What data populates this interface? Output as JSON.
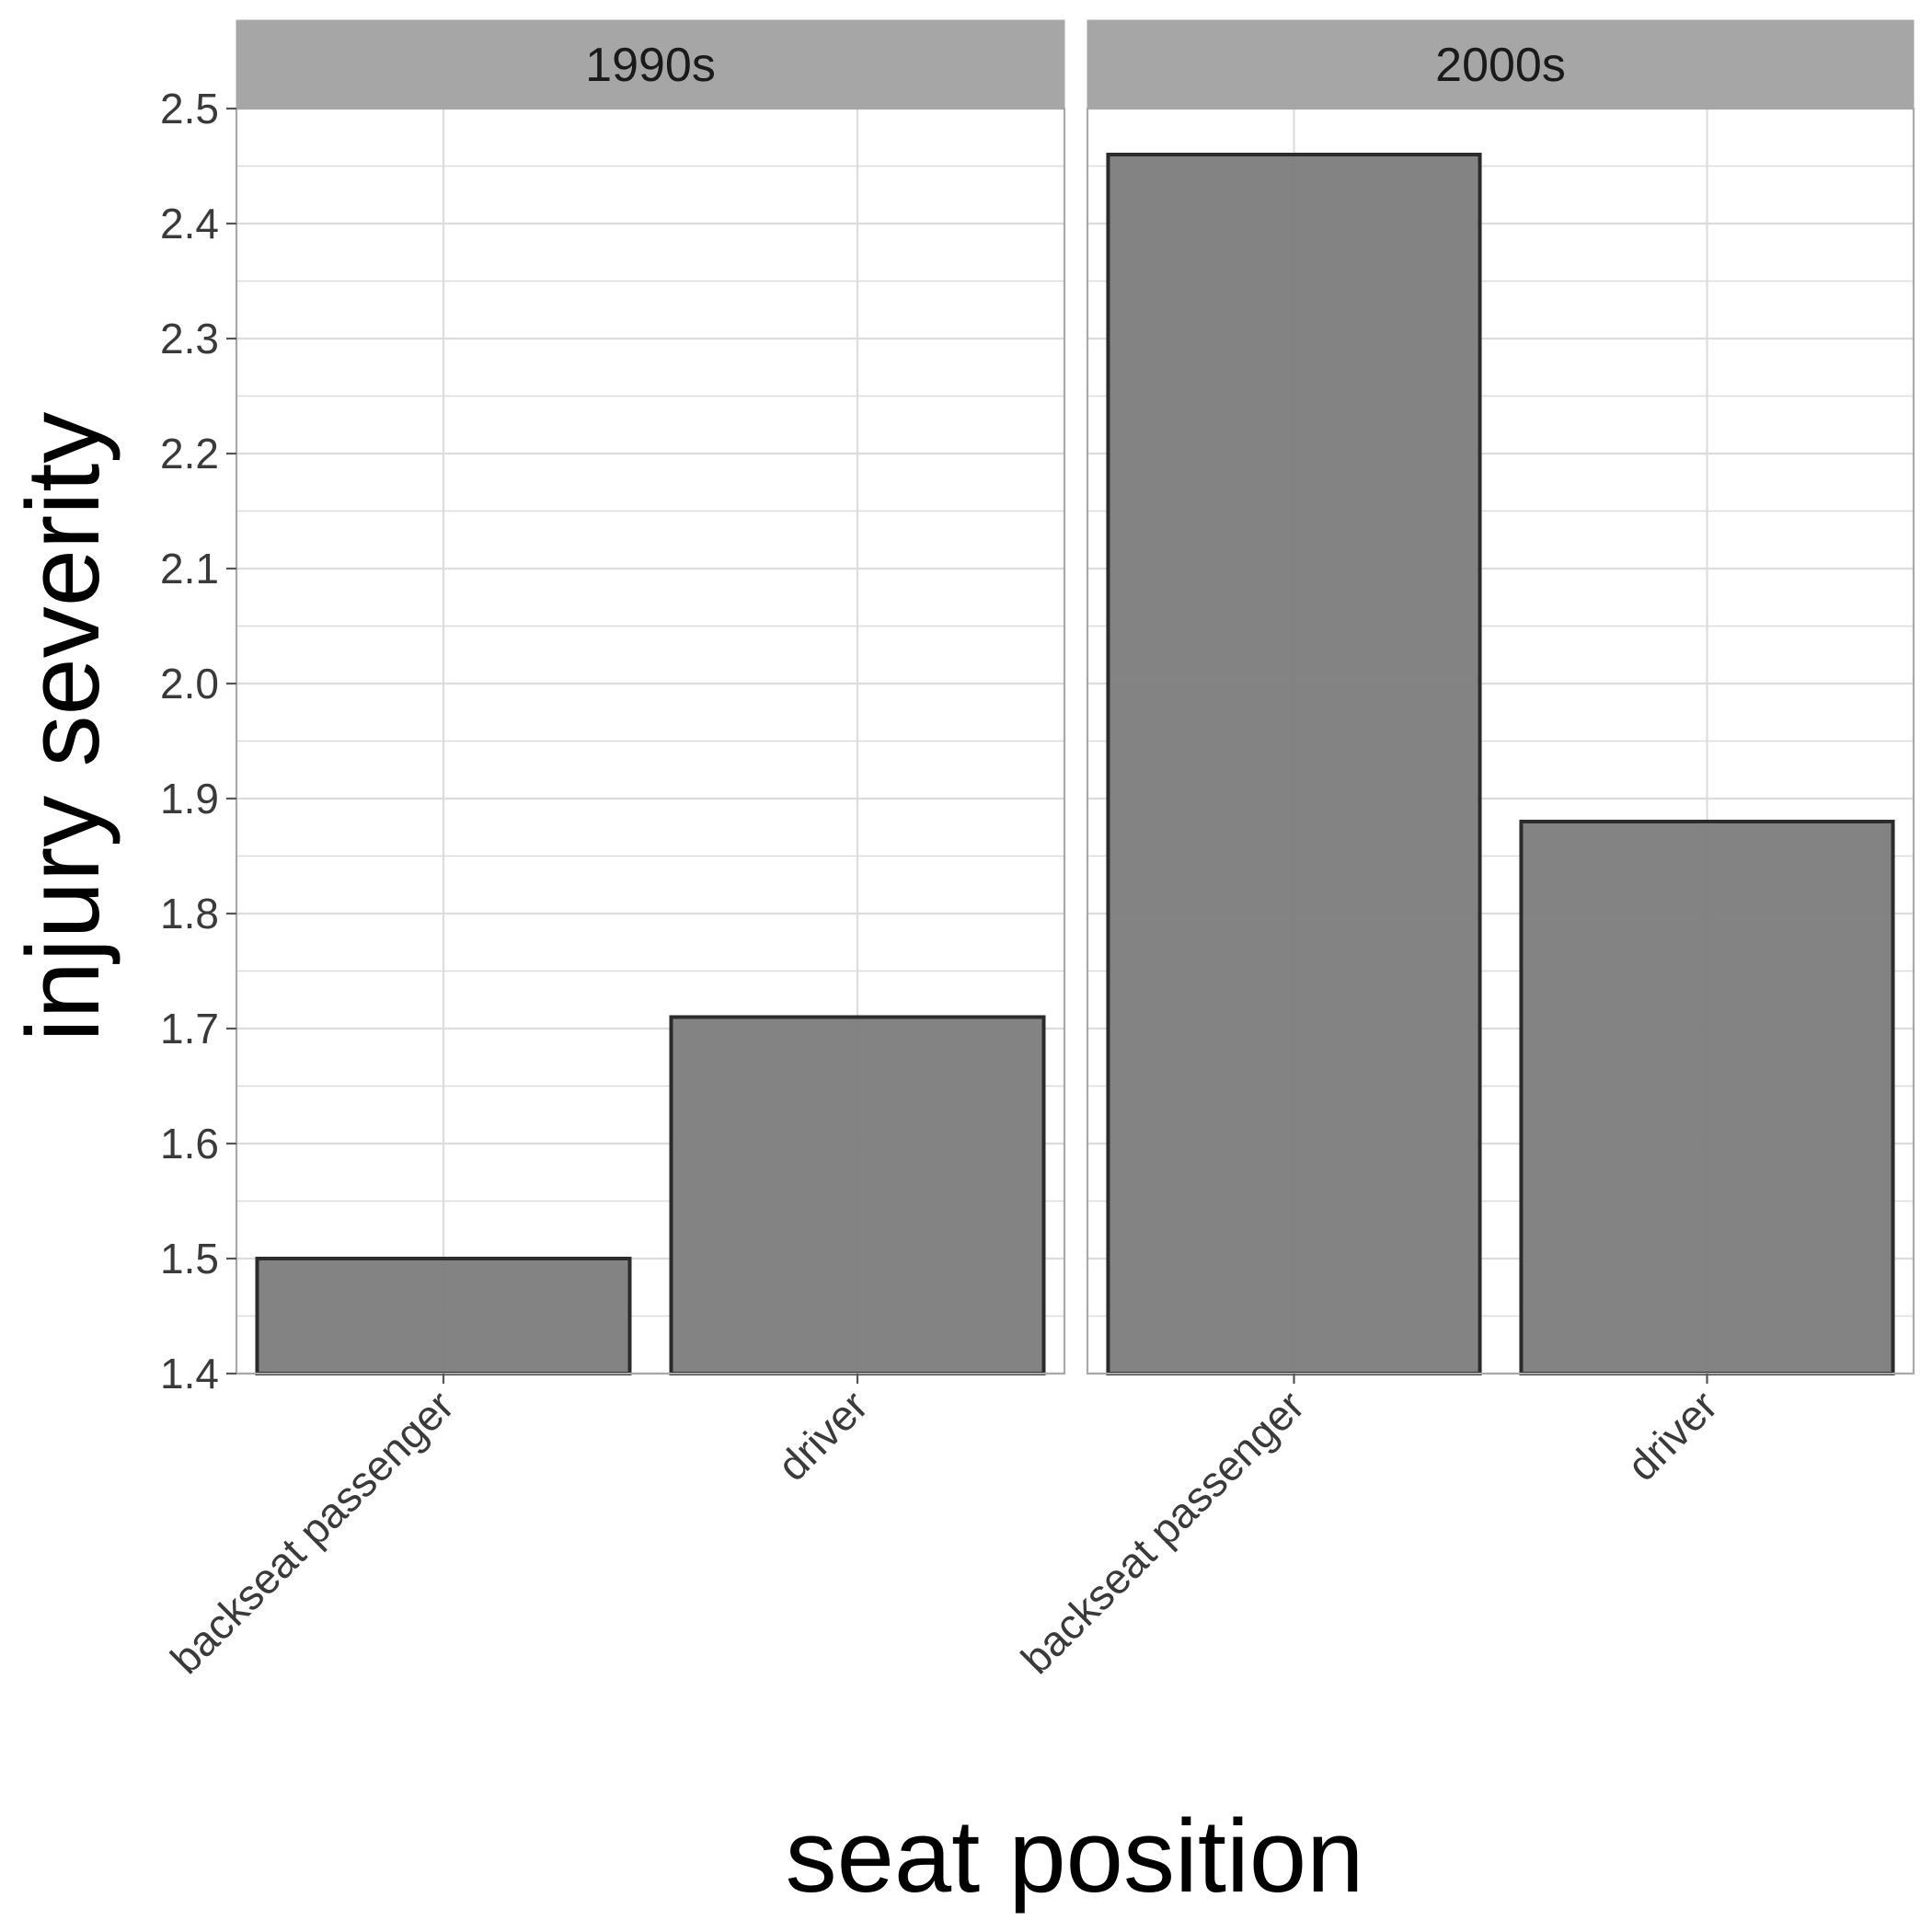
{
  "chart_data": {
    "type": "bar",
    "xlabel": "seat position",
    "ylabel": "injury severity",
    "ylim": [
      1.4,
      2.5
    ],
    "y_ticks": [
      "1.4",
      "1.5",
      "1.6",
      "1.7",
      "1.8",
      "1.9",
      "2.0",
      "2.1",
      "2.2",
      "2.3",
      "2.4",
      "2.5"
    ],
    "grid": true,
    "categories": [
      "backseat passenger",
      "driver"
    ],
    "facets": [
      {
        "label": "1990s",
        "values": [
          1.5,
          1.71
        ]
      },
      {
        "label": "2000s",
        "values": [
          2.46,
          1.88
        ]
      }
    ],
    "bar_fill": "#7f7f7f",
    "bar_stroke": "#2b2b2b",
    "strip_fill": "#a6a6a6",
    "grid_color": "#dcdcdc",
    "panel_border": "#a9a9a9"
  }
}
